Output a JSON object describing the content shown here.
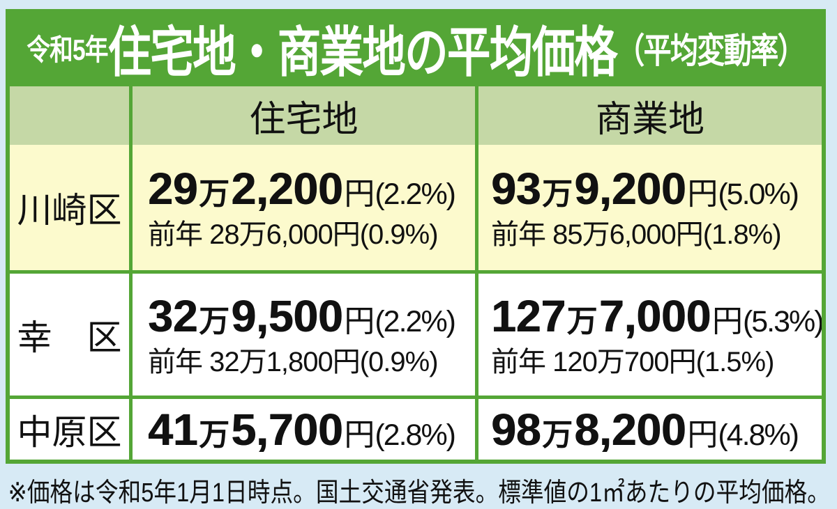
{
  "title": {
    "era_prefix": "令和5年",
    "main": "住宅地・商業地の平均価格",
    "suffix": "（平均変動率）",
    "bg_color": "#54a636",
    "text_color": "#ffffff"
  },
  "table": {
    "border_color": "#54a636",
    "header": {
      "bg_color": "#c5d8a6",
      "columns": [
        "",
        "住宅地",
        "商業地"
      ]
    },
    "rows": [
      {
        "ward": "川崎区",
        "bg_color": "#fcfacd",
        "residential": {
          "man": "29",
          "man_unit": "万",
          "sen": "2,200",
          "yen_unit": "円",
          "rate": "(2.2%)",
          "previous": "前年 28万6,000円(0.9%)"
        },
        "commercial": {
          "man": "93",
          "man_unit": "万",
          "sen": "9,200",
          "yen_unit": "円",
          "rate": "(5.0%)",
          "previous": "前年 85万6,000円(1.8%)"
        }
      },
      {
        "ward": "幸　区",
        "bg_color": "#ffffff",
        "residential": {
          "man": "32",
          "man_unit": "万",
          "sen": "9,500",
          "yen_unit": "円",
          "rate": "(2.2%)",
          "previous": "前年 32万1,800円(0.9%)"
        },
        "commercial": {
          "man": "127",
          "man_unit": "万",
          "sen": "7,000",
          "yen_unit": "円",
          "rate": "(5.3%)",
          "previous": "前年 120万700円(1.5%)"
        }
      },
      {
        "ward": "中原区",
        "bg_color": "#ffffff",
        "residential": {
          "man": "41",
          "man_unit": "万",
          "sen": "5,700",
          "yen_unit": "円",
          "rate": "(2.8%)"
        },
        "commercial": {
          "man": "98",
          "man_unit": "万",
          "sen": "8,200",
          "yen_unit": "円",
          "rate": "(4.8%)"
        }
      }
    ]
  },
  "footnote": {
    "text": "※価格は令和5年1月1日時点。国土交通省発表。標準値の1㎡あたりの平均価格。"
  },
  "chart_data": {
    "type": "table",
    "title": "令和5年住宅地・商業地の平均価格（平均変動率）",
    "columns": [
      "区",
      "住宅地",
      "商業地"
    ],
    "unit": "円/㎡",
    "rows": [
      {
        "ward": "川崎区",
        "residential_yen": 292200,
        "residential_change_pct": 2.2,
        "residential_prev_yen": 286000,
        "residential_prev_change_pct": 0.9,
        "commercial_yen": 939200,
        "commercial_change_pct": 5.0,
        "commercial_prev_yen": 856000,
        "commercial_prev_change_pct": 1.8
      },
      {
        "ward": "幸区",
        "residential_yen": 329500,
        "residential_change_pct": 2.2,
        "residential_prev_yen": 321800,
        "residential_prev_change_pct": 0.9,
        "commercial_yen": 1277000,
        "commercial_change_pct": 5.3,
        "commercial_prev_yen": 1200700,
        "commercial_prev_change_pct": 1.5
      },
      {
        "ward": "中原区",
        "residential_yen": 415700,
        "residential_change_pct": 2.8,
        "commercial_yen": 988200,
        "commercial_change_pct": 4.8
      }
    ],
    "note": "※価格は令和5年1月1日時点。国土交通省発表。標準値の1㎡あたりの平均価格。"
  }
}
